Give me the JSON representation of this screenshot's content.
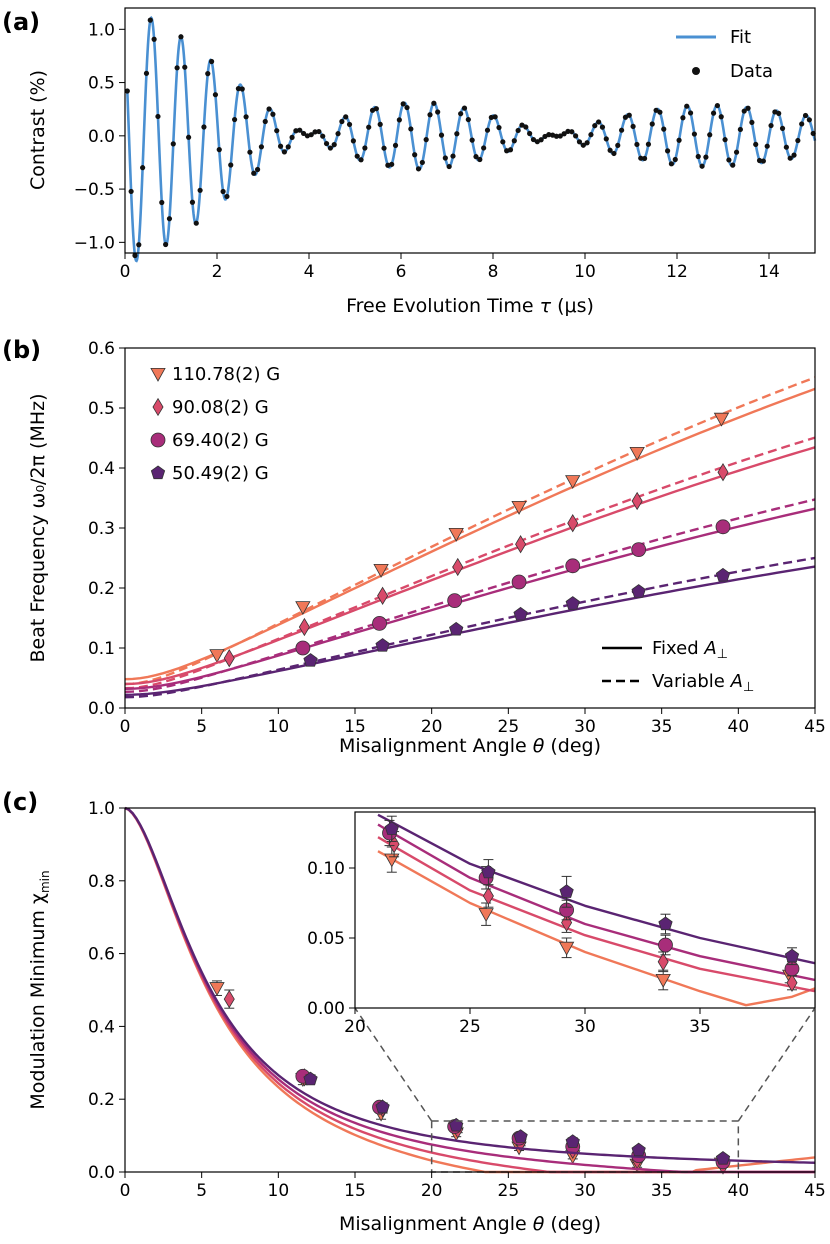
{
  "figure": {
    "panels": [
      "(a)",
      "(b)",
      "(c)"
    ]
  },
  "chart_data": [
    {
      "type": "line",
      "panel": "(a)",
      "xlabel_pre": "Free Evolution Time ",
      "xlabel_sym": "τ",
      "xlabel_post": " (μs)",
      "ylabel": "Contrast (%)",
      "xlim": [
        0,
        15
      ],
      "ylim": [
        -1.1,
        1.2
      ],
      "xticks": [
        "0",
        "2",
        "4",
        "6",
        "8",
        "10",
        "12",
        "14"
      ],
      "xtick_values": [
        0,
        2,
        4,
        6,
        8,
        10,
        12,
        14
      ],
      "yticks": [
        "−1.0",
        "−0.5",
        "0.0",
        "0.5",
        "1.0"
      ],
      "ytick_values": [
        -1.0,
        -0.5,
        0.0,
        0.5,
        1.0
      ],
      "legend": {
        "fit_label": "Fit",
        "data_label": "Data",
        "placement": "upper-right"
      },
      "series": [
        {
          "name": "Fit",
          "kind": "line",
          "color": "#4a90d2"
        },
        {
          "name": "Data",
          "kind": "points",
          "color": "#111111"
        }
      ],
      "model": {
        "f1": 1.545,
        "f2": 1.47,
        "amp": 1.05,
        "decay_us": 9.0,
        "sampling_us": 0.0833
      }
    },
    {
      "type": "line",
      "panel": "(b)",
      "xlabel_pre": "Misalignment Angle ",
      "xlabel_sym": "θ",
      "xlabel_post": " (deg)",
      "ylabel": "Beat Frequency ω₀/2π (MHz)",
      "xlim": [
        0,
        45
      ],
      "ylim": [
        0,
        0.6
      ],
      "xticks": [
        "0",
        "5",
        "10",
        "15",
        "20",
        "25",
        "30",
        "35",
        "40",
        "45"
      ],
      "xtick_values": [
        0,
        5,
        10,
        15,
        20,
        25,
        30,
        35,
        40,
        45
      ],
      "yticks": [
        "0.0",
        "0.1",
        "0.2",
        "0.3",
        "0.4",
        "0.5",
        "0.6"
      ],
      "ytick_values": [
        0,
        0.1,
        0.2,
        0.3,
        0.4,
        0.5,
        0.6
      ],
      "legend_lines": {
        "fixed_pre": "Fixed ",
        "variable_pre": "Variable ",
        "sym": "A",
        "sub": "⊥"
      },
      "series": [
        {
          "name": "110.78(2) G",
          "marker": "triangle-down",
          "color": "#f07858",
          "x": [
            6.0,
            11.6,
            16.7,
            21.6,
            25.7,
            29.2,
            33.4,
            38.9
          ],
          "y": [
            0.088,
            0.168,
            0.23,
            0.29,
            0.335,
            0.378,
            0.425,
            0.482
          ],
          "fixed_A": 0.535,
          "fixed_c": 0.048,
          "var_A": 0.555,
          "var_c": 0.04
        },
        {
          "name": "90.08(2) G",
          "marker": "diamond",
          "color": "#d84a6a",
          "x": [
            6.8,
            11.7,
            16.8,
            21.7,
            25.8,
            29.2,
            33.4,
            39.0
          ],
          "y": [
            0.083,
            0.135,
            0.187,
            0.235,
            0.273,
            0.308,
            0.345,
            0.393
          ],
          "fixed_A": 0.437,
          "fixed_c": 0.04,
          "var_A": 0.454,
          "var_c": 0.033
        },
        {
          "name": "69.40(2) G",
          "marker": "circle",
          "color": "#a82d7a",
          "x": [
            11.6,
            16.6,
            21.5,
            25.7,
            29.2,
            33.5,
            39.0
          ],
          "y": [
            0.1,
            0.141,
            0.179,
            0.21,
            0.237,
            0.264,
            0.302
          ],
          "fixed_A": 0.334,
          "fixed_c": 0.032,
          "var_A": 0.35,
          "var_c": 0.027
        },
        {
          "name": "50.49(2) G",
          "marker": "pentagon",
          "color": "#5a2472",
          "x": [
            12.1,
            16.8,
            21.6,
            25.8,
            29.2,
            33.5,
            39.0
          ],
          "y": [
            0.079,
            0.104,
            0.131,
            0.156,
            0.174,
            0.194,
            0.221
          ],
          "fixed_A": 0.237,
          "fixed_c": 0.022,
          "var_A": 0.252,
          "var_c": 0.018
        }
      ]
    },
    {
      "type": "line",
      "panel": "(c)",
      "xlabel_pre": "Misalignment Angle ",
      "xlabel_sym": "θ",
      "xlabel_post": " (deg)",
      "ylabel_main": "Modulation Minimum χ",
      "ylabel_sub": "min",
      "xlim": [
        0,
        45
      ],
      "ylim": [
        0,
        1.0
      ],
      "xticks": [
        "0",
        "5",
        "10",
        "15",
        "20",
        "25",
        "30",
        "35",
        "40",
        "45"
      ],
      "xtick_values": [
        0,
        5,
        10,
        15,
        20,
        25,
        30,
        35,
        40,
        45
      ],
      "yticks": [
        "0.0",
        "0.2",
        "0.4",
        "0.6",
        "0.8",
        "1.0"
      ],
      "ytick_values": [
        0,
        0.2,
        0.4,
        0.6,
        0.8,
        1.0
      ],
      "inset": {
        "xlim": [
          20,
          40
        ],
        "ylim": [
          0,
          0.14
        ],
        "xticks": [
          "20",
          "25",
          "30",
          "35"
        ],
        "xtick_values": [
          20,
          25,
          30,
          35
        ],
        "yticks": [
          "0.00",
          "0.05",
          "0.10"
        ],
        "ytick_values": [
          0,
          0.05,
          0.1
        ],
        "zoom_box": {
          "x": [
            20,
            40
          ],
          "y": [
            0,
            0.14
          ]
        }
      },
      "series": [
        {
          "name": "110.78(2) G",
          "marker": "triangle-down",
          "color": "#f07858",
          "x": [
            6.0,
            11.6,
            16.7,
            21.6,
            25.7,
            29.2,
            33.4,
            38.9
          ],
          "y": [
            0.505,
            0.255,
            0.16,
            0.106,
            0.067,
            0.043,
            0.02,
            0.023
          ],
          "err": [
            0.02,
            0.015,
            0.015,
            0.009,
            0.008,
            0.007,
            0.007,
            0.005
          ],
          "curve": [
            [
              21,
              0.112
            ],
            [
              25,
              0.075
            ],
            [
              30,
              0.04
            ],
            [
              35,
              0.012
            ],
            [
              37,
              0.002
            ],
            [
              39,
              0.008
            ],
            [
              40,
              0.014
            ]
          ]
        },
        {
          "name": "90.08(2) G",
          "marker": "diamond",
          "color": "#d84a6a",
          "x": [
            6.8,
            11.7,
            16.8,
            21.7,
            25.8,
            29.2,
            33.4,
            39.0
          ],
          "y": [
            0.475,
            0.26,
            0.175,
            0.117,
            0.08,
            0.061,
            0.033,
            0.018
          ],
          "err": [
            0.025,
            0.013,
            0.013,
            0.009,
            0.008,
            0.007,
            0.007,
            0.005
          ],
          "curve": [
            [
              21,
              0.122
            ],
            [
              25,
              0.084
            ],
            [
              30,
              0.052
            ],
            [
              35,
              0.028
            ],
            [
              40,
              0.012
            ]
          ]
        },
        {
          "name": "69.40(2) G",
          "marker": "circle",
          "color": "#a82d7a",
          "x": [
            11.6,
            16.6,
            21.5,
            25.7,
            29.2,
            33.5,
            39.0
          ],
          "y": [
            0.263,
            0.178,
            0.125,
            0.093,
            0.07,
            0.045,
            0.028
          ],
          "err": [
            0.012,
            0.012,
            0.009,
            0.008,
            0.007,
            0.007,
            0.005
          ],
          "curve": [
            [
              21,
              0.131
            ],
            [
              25,
              0.093
            ],
            [
              30,
              0.06
            ],
            [
              35,
              0.037
            ],
            [
              40,
              0.02
            ]
          ]
        },
        {
          "name": "50.49(2) G",
          "marker": "pentagon",
          "color": "#5a2472",
          "x": [
            12.1,
            16.8,
            21.6,
            25.8,
            29.2,
            33.5,
            39.0
          ],
          "y": [
            0.255,
            0.178,
            0.128,
            0.097,
            0.083,
            0.06,
            0.037
          ],
          "err": [
            0.012,
            0.012,
            0.009,
            0.009,
            0.011,
            0.007,
            0.006
          ],
          "curve": [
            [
              21,
              0.138
            ],
            [
              25,
              0.103
            ],
            [
              30,
              0.073
            ],
            [
              35,
              0.05
            ],
            [
              40,
              0.032
            ]
          ]
        }
      ]
    }
  ]
}
